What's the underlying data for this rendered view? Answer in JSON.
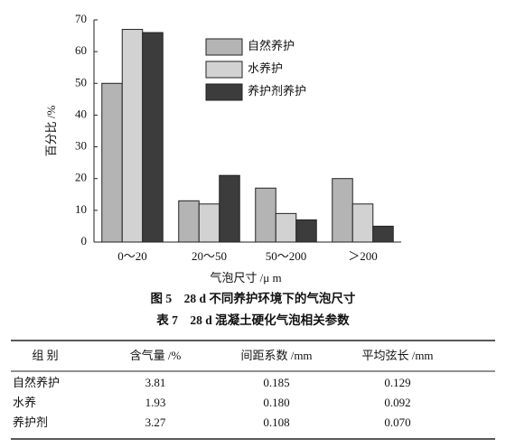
{
  "chart_data": {
    "type": "bar",
    "y_label": "百分比 /%",
    "x_label": "气泡尺寸 /μ m",
    "categories": [
      "0～20",
      "20～50",
      "50～200",
      "＞200"
    ],
    "series": [
      {
        "name": "自然养护",
        "color": "#b4b4b4",
        "values": [
          50,
          13,
          17,
          20
        ]
      },
      {
        "name": "水养护",
        "color": "#d2d2d2",
        "values": [
          67,
          12,
          9,
          12
        ]
      },
      {
        "name": "养护剂养护",
        "color": "#3c3c3c",
        "values": [
          66,
          21,
          7,
          5
        ]
      }
    ],
    "ylim": [
      0,
      70
    ],
    "yticks": [
      0,
      10,
      20,
      30,
      40,
      50,
      60,
      70
    ]
  },
  "figure_caption": "图 5　28 d 不同养护环境下的气泡尺寸",
  "table_caption": "表 7　28 d 混凝土硬化气泡相关参数",
  "table": {
    "header": [
      "组  别",
      "含气量 /%",
      "间距系数 /mm",
      "平均弦长 /mm"
    ],
    "rows": [
      [
        "自然养护",
        "3.81",
        "0.185",
        "0.129"
      ],
      [
        "水养",
        "1.93",
        "0.180",
        "0.092"
      ],
      [
        "养护剂",
        "3.27",
        "0.108",
        "0.070"
      ]
    ]
  }
}
